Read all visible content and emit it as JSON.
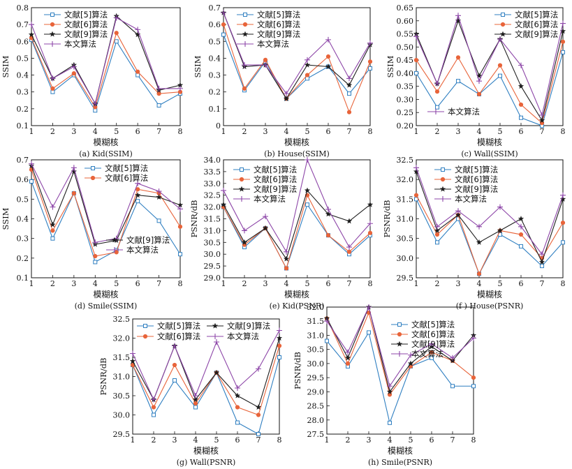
{
  "chart_data": [
    {
      "type": "line",
      "caption": "(a) Kid(SSIM)",
      "xlabel": "模糊核",
      "ylabel": "SSIM",
      "x": [
        1,
        2,
        3,
        4,
        5,
        6,
        7,
        8
      ],
      "ylim": [
        0.1,
        0.8
      ],
      "yticks": [
        "0.1",
        "0.2",
        "0.3",
        "0.4",
        "0.5",
        "0.6",
        "0.7",
        "0.8"
      ],
      "legend_loc": "top-left",
      "legend_order": [
        0,
        1,
        2,
        3
      ],
      "series": [
        {
          "name": "文献[5]算法",
          "values": [
            0.61,
            0.3,
            0.4,
            0.19,
            0.6,
            0.4,
            0.22,
            0.29
          ]
        },
        {
          "name": "文献[6]算法",
          "values": [
            0.62,
            0.32,
            0.41,
            0.21,
            0.65,
            0.42,
            0.29,
            0.3
          ]
        },
        {
          "name": "文献[9]算法",
          "values": [
            0.64,
            0.38,
            0.46,
            0.23,
            0.75,
            0.64,
            0.31,
            0.34
          ]
        },
        {
          "name": "本文算法",
          "values": [
            0.7,
            0.38,
            0.45,
            0.23,
            0.74,
            0.67,
            0.32,
            0.32
          ]
        }
      ]
    },
    {
      "type": "line",
      "caption": "(b) House(SSIM)",
      "xlabel": "模糊核",
      "ylabel": "SSIM",
      "x": [
        1,
        2,
        3,
        4,
        5,
        6,
        7,
        8
      ],
      "ylim": [
        0.0,
        0.7
      ],
      "yticks": [
        "0",
        "0.1",
        "0.2",
        "0.3",
        "0.4",
        "0.5",
        "0.6",
        "0.7"
      ],
      "legend_loc": "top-left",
      "legend_order": [
        0,
        1,
        2,
        3
      ],
      "series": [
        {
          "name": "文献[5]算法",
          "values": [
            0.54,
            0.21,
            0.38,
            0.16,
            0.28,
            0.35,
            0.19,
            0.34
          ]
        },
        {
          "name": "文献[6]算法",
          "values": [
            0.6,
            0.22,
            0.39,
            0.16,
            0.3,
            0.41,
            0.08,
            0.38
          ]
        },
        {
          "name": "文献[9]算法",
          "values": [
            0.67,
            0.35,
            0.36,
            0.16,
            0.36,
            0.35,
            0.24,
            0.48
          ]
        },
        {
          "name": "本文算法",
          "values": [
            0.67,
            0.36,
            0.36,
            0.19,
            0.39,
            0.51,
            0.28,
            0.49
          ]
        }
      ]
    },
    {
      "type": "line",
      "caption": "(c) Wall(SSIM)",
      "xlabel": "模糊核",
      "ylabel": "SSIM",
      "x": [
        1,
        2,
        3,
        4,
        5,
        6,
        7,
        8
      ],
      "ylim": [
        0.2,
        0.65
      ],
      "yticks": [
        "0.20",
        "0.25",
        "0.30",
        "0.35",
        "0.40",
        "0.45",
        "0.50",
        "0.55",
        "0.60",
        "0.65"
      ],
      "legend_loc": "split: top-right and bottom-left",
      "legend_order": [
        0,
        1,
        2,
        3
      ],
      "series": [
        {
          "name": "文献[5]算法",
          "values": [
            0.4,
            0.27,
            0.37,
            0.32,
            0.39,
            0.23,
            0.2,
            0.48
          ]
        },
        {
          "name": "文献[6]算法",
          "values": [
            0.45,
            0.33,
            0.46,
            0.32,
            0.43,
            0.28,
            0.21,
            0.52
          ]
        },
        {
          "name": "文献[9]算法",
          "values": [
            0.55,
            0.36,
            0.6,
            0.39,
            0.53,
            0.35,
            0.22,
            0.56
          ]
        },
        {
          "name": "本文算法",
          "values": [
            0.54,
            0.36,
            0.62,
            0.37,
            0.53,
            0.43,
            0.24,
            0.59
          ]
        }
      ]
    },
    {
      "type": "line",
      "caption": "(d) Smile(SSIM)",
      "xlabel": "模糊核",
      "ylabel": "SSIM",
      "x": [
        1,
        2,
        3,
        4,
        5,
        6,
        7,
        8
      ],
      "ylim": [
        0.1,
        0.7
      ],
      "yticks": [
        "0.1",
        "0.2",
        "0.3",
        "0.4",
        "0.5",
        "0.6",
        "0.7"
      ],
      "legend_loc": "split: top-right and bottom-right",
      "legend_order": [
        0,
        1,
        2,
        3
      ],
      "series": [
        {
          "name": "文献[5]算法",
          "values": [
            0.59,
            0.3,
            0.53,
            0.18,
            0.24,
            0.49,
            0.39,
            0.22
          ]
        },
        {
          "name": "文献[6]算法",
          "values": [
            0.65,
            0.34,
            0.53,
            0.21,
            0.23,
            0.55,
            0.53,
            0.36
          ]
        },
        {
          "name": "文献[9]算法",
          "values": [
            0.67,
            0.37,
            0.64,
            0.27,
            0.29,
            0.52,
            0.51,
            0.47
          ]
        },
        {
          "name": "本文算法",
          "values": [
            0.68,
            0.46,
            0.66,
            0.28,
            0.3,
            0.58,
            0.54,
            0.45
          ]
        }
      ]
    },
    {
      "type": "line",
      "caption": "(e) Kid(PSNR)",
      "xlabel": "模糊核",
      "ylabel": "PSNR/dB",
      "x": [
        1,
        2,
        3,
        4,
        5,
        6,
        7,
        8
      ],
      "ylim": [
        29.0,
        34.0
      ],
      "yticks": [
        "29.0",
        "29.5",
        "30.0",
        "30.5",
        "31.0",
        "31.5",
        "32.0",
        "32.5",
        "33.0",
        "33.5",
        "34.0"
      ],
      "legend_loc": "top-center",
      "legend_order": [
        0,
        1,
        2,
        3
      ],
      "series": [
        {
          "name": "文献[5]算法",
          "values": [
            32.0,
            30.3,
            31.1,
            29.4,
            32.1,
            30.8,
            30.0,
            30.8
          ]
        },
        {
          "name": "文献[6]算法",
          "values": [
            32.0,
            30.4,
            31.1,
            29.4,
            32.5,
            30.8,
            30.1,
            30.9
          ]
        },
        {
          "name": "文献[9]算法",
          "values": [
            32.1,
            30.5,
            31.1,
            29.8,
            32.7,
            31.7,
            31.4,
            32.1
          ]
        },
        {
          "name": "本文算法",
          "values": [
            32.7,
            31.0,
            31.6,
            30.1,
            34.0,
            31.9,
            30.3,
            31.3
          ]
        }
      ]
    },
    {
      "type": "line",
      "caption": "(f ) House(PSNR)",
      "xlabel": "模糊核",
      "ylabel": "PSNR/dB",
      "x": [
        1,
        2,
        3,
        4,
        5,
        6,
        7,
        8
      ],
      "ylim": [
        29.5,
        32.5
      ],
      "yticks": [
        "29.5",
        "30.0",
        "30.5",
        "31.0",
        "31.5",
        "32.0",
        "32.5"
      ],
      "legend_loc": "top-left",
      "legend_order": [
        0,
        1,
        2,
        3
      ],
      "series": [
        {
          "name": "文献[5]算法",
          "values": [
            31.5,
            30.4,
            31.0,
            29.6,
            30.6,
            30.3,
            29.8,
            30.4
          ]
        },
        {
          "name": "文献[6]算法",
          "values": [
            31.6,
            30.6,
            31.1,
            29.6,
            30.7,
            30.6,
            30.0,
            30.9
          ]
        },
        {
          "name": "文献[9]算法",
          "values": [
            32.2,
            30.7,
            31.1,
            30.4,
            30.7,
            31.0,
            29.9,
            31.5
          ]
        },
        {
          "name": "本文算法",
          "values": [
            32.3,
            30.8,
            31.2,
            30.8,
            31.3,
            30.8,
            30.1,
            31.6
          ]
        }
      ]
    },
    {
      "type": "line",
      "caption": "(g) Wall(PSNR)",
      "xlabel": "模糊核",
      "ylabel": "PSNR/dB",
      "x": [
        1,
        2,
        3,
        4,
        5,
        6,
        7,
        8
      ],
      "ylim": [
        29.5,
        32.5
      ],
      "yticks": [
        "29.5",
        "30.0",
        "30.5",
        "31.0",
        "31.5",
        "32.0",
        "32.5"
      ],
      "legend_loc": "top, two columns",
      "legend_order": [
        0,
        2,
        1,
        3
      ],
      "series": [
        {
          "name": "文献[5]算法",
          "values": [
            31.3,
            30.0,
            30.9,
            30.2,
            31.1,
            29.8,
            29.5,
            31.5
          ]
        },
        {
          "name": "文献[6]算法",
          "values": [
            31.3,
            30.2,
            31.3,
            30.3,
            31.1,
            30.2,
            30.0,
            31.8
          ]
        },
        {
          "name": "文献[9]算法",
          "values": [
            31.4,
            30.4,
            31.8,
            30.4,
            31.1,
            30.5,
            30.2,
            32.0
          ]
        },
        {
          "name": "本文算法",
          "values": [
            31.6,
            30.4,
            31.8,
            30.5,
            31.9,
            30.7,
            31.2,
            32.2
          ]
        }
      ]
    },
    {
      "type": "line",
      "caption": "(h) Smile(PSNR)",
      "xlabel": "模糊核",
      "ylabel": "PSNR/dB",
      "x": [
        1,
        2,
        3,
        4,
        5,
        6,
        7,
        8
      ],
      "ylim": [
        27.5,
        32.0
      ],
      "yticks": [
        "27.5",
        "28.0",
        "28.5",
        "29.0",
        "29.5",
        "30.0",
        "30.5",
        "31.0",
        "31.5",
        "32.0"
      ],
      "legend_loc": "top-right",
      "legend_order": [
        0,
        1,
        2,
        3
      ],
      "series": [
        {
          "name": "文献[5]算法",
          "values": [
            30.8,
            29.9,
            31.1,
            27.9,
            29.9,
            30.2,
            29.2,
            29.2
          ]
        },
        {
          "name": "文献[6]算法",
          "values": [
            31.6,
            30.0,
            31.8,
            28.9,
            29.9,
            30.4,
            30.1,
            29.5
          ]
        },
        {
          "name": "文献[9]算法",
          "values": [
            31.6,
            30.2,
            32.0,
            29.0,
            30.0,
            30.6,
            30.1,
            31.0
          ]
        },
        {
          "name": "本文算法",
          "values": [
            31.5,
            30.4,
            32.0,
            29.2,
            30.3,
            30.7,
            30.2,
            30.9
          ]
        }
      ]
    }
  ],
  "colors": {
    "series": [
      "#2f7fc1",
      "#e8643a",
      "#1e1e1e",
      "#8d46a8"
    ],
    "axis": "#111111"
  },
  "markers": [
    "square",
    "circle",
    "star",
    "plus"
  ]
}
